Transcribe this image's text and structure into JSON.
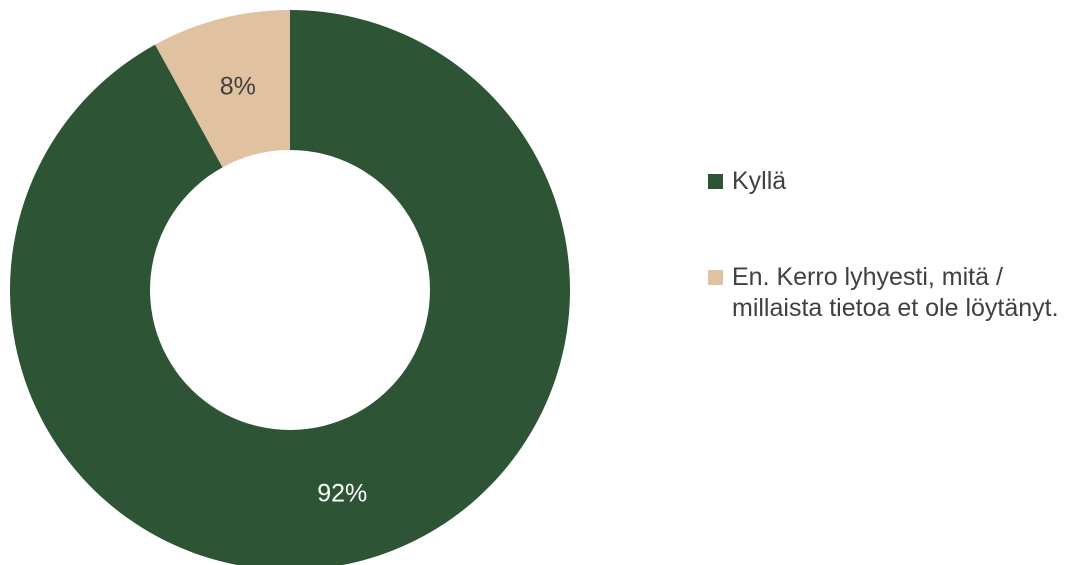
{
  "chart_data": {
    "type": "pie",
    "donut": true,
    "title": "",
    "categories": [
      "Kyllä",
      "En. Kerro lyhyesti, mitä / millaista tietoa et ole löytänyt."
    ],
    "values": [
      92,
      8
    ],
    "data_labels": [
      "92%",
      "8%"
    ],
    "colors": [
      "#2d5434",
      "#e0c1a0"
    ],
    "label_colors": [
      "#ffffff",
      "#404040"
    ],
    "legend_position": "right"
  }
}
